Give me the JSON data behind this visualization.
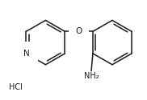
{
  "background_color": "#ffffff",
  "line_color": "#1a1a1a",
  "line_width": 1.1,
  "text_color": "#1a1a1a",
  "label_N": "N",
  "label_O": "O",
  "label_NH2": "NH₂",
  "label_HCl": "HCl",
  "font_size_atoms": 7.0,
  "font_size_hcl": 7.0,
  "fig_width": 1.82,
  "fig_height": 1.25,
  "dpi": 100
}
